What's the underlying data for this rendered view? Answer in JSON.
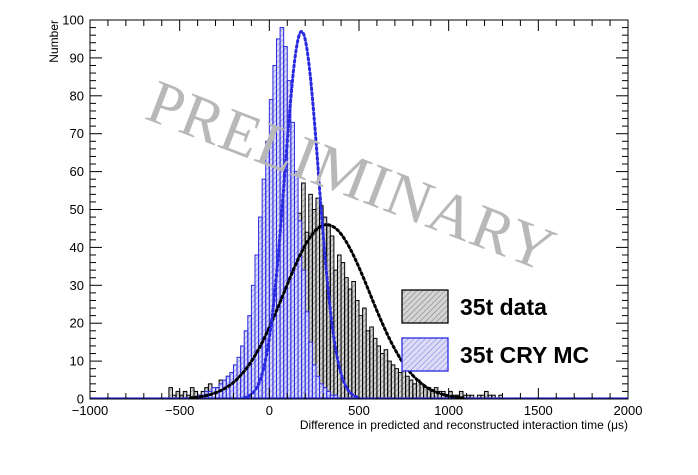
{
  "chart_data": {
    "type": "histogram",
    "xlabel": "Difference in predicted and reconstructed interaction time (μs)",
    "ylabel": "Number",
    "xlim": [
      -1000,
      2000
    ],
    "ylim": [
      0,
      100
    ],
    "x_ticks": [
      -1000,
      -500,
      0,
      500,
      1000,
      1500,
      2000
    ],
    "y_ticks": [
      0,
      10,
      20,
      30,
      40,
      50,
      60,
      70,
      80,
      90,
      100
    ],
    "watermark": "PRELIMINARY",
    "legend_position": "lower-right",
    "grid": false,
    "bin_width": 20,
    "series": [
      {
        "name": "35t data",
        "color": "#000000",
        "fill": "#d4d4d4",
        "hatch": "diagonal",
        "bins_start": -560,
        "counts": [
          3,
          1,
          2,
          1,
          2,
          1,
          3,
          2,
          1,
          2,
          3,
          4,
          2,
          3,
          5,
          4,
          6,
          5,
          7,
          6,
          9,
          8,
          11,
          12,
          10,
          14,
          16,
          19,
          22,
          26,
          30,
          35,
          33,
          41,
          38,
          55,
          49,
          57,
          44,
          54,
          50,
          53,
          51,
          48,
          46,
          43,
          34,
          38,
          36,
          32,
          29,
          31,
          26,
          22,
          24,
          18,
          19,
          16,
          14,
          12,
          13,
          10,
          9,
          8,
          7,
          8,
          6,
          5,
          4,
          5,
          4,
          3,
          3,
          2,
          3,
          2,
          2,
          1,
          2,
          1,
          1,
          2,
          1,
          1,
          1,
          0,
          1,
          1,
          2,
          1,
          1,
          0,
          1
        ]
      },
      {
        "name": "35t CRY MC",
        "color": "#2a2ae0",
        "fill": "#cfcff5",
        "hatch": "diagonal",
        "bins_start": -400,
        "counts": [
          1,
          1,
          2,
          2,
          3,
          3,
          4,
          5,
          6,
          7,
          9,
          11,
          14,
          18,
          22,
          30,
          38,
          48,
          58,
          68,
          79,
          88,
          95,
          98,
          93,
          84,
          73,
          60,
          47,
          34,
          23,
          15,
          9,
          6,
          4,
          3,
          2,
          1,
          1
        ]
      }
    ],
    "fits": [
      {
        "series": "35t data",
        "color": "#000000",
        "style": "dotted",
        "mean": 320,
        "sigma": 240,
        "amplitude": 46
      },
      {
        "series": "35t CRY MC",
        "color": "#2a2ae0",
        "style": "dotted",
        "mean": 180,
        "sigma": 95,
        "amplitude": 97
      }
    ]
  }
}
